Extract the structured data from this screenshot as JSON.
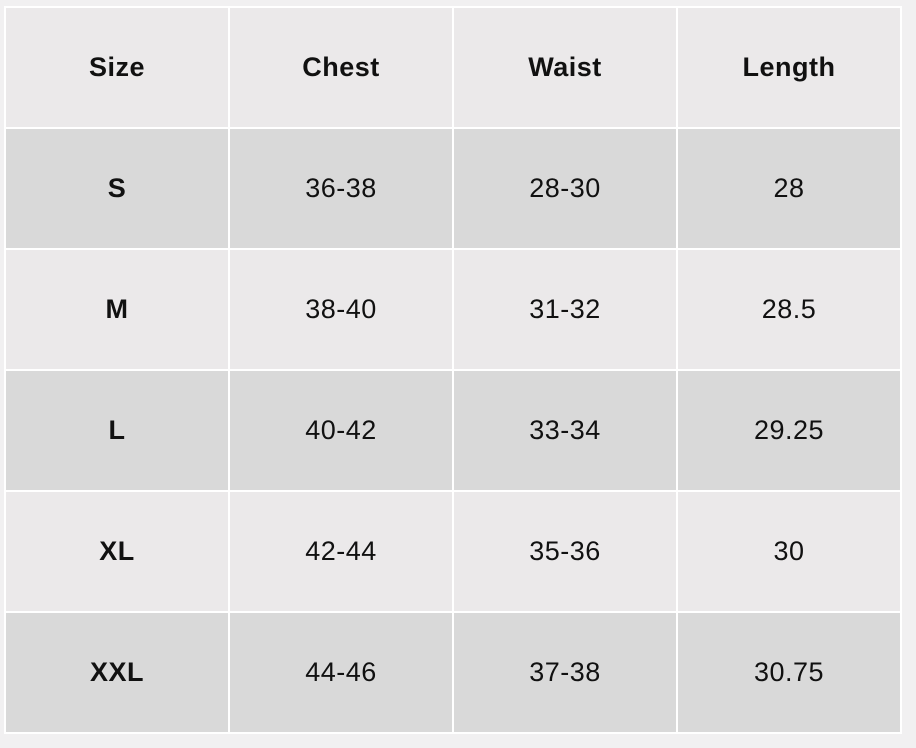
{
  "headers": [
    "Size",
    "Chest",
    "Waist",
    "Length"
  ],
  "rows": [
    [
      "S",
      "36-38",
      "28-30",
      "28"
    ],
    [
      "M",
      "38-40",
      "31-32",
      "28.5"
    ],
    [
      "L",
      "40-42",
      "33-34",
      "29.25"
    ],
    [
      "XL",
      "42-44",
      "35-36",
      "30"
    ],
    [
      "XXL",
      "44-46",
      "37-38",
      "30.75"
    ]
  ],
  "colors": {
    "header_bg": "#ebe9ea",
    "odd_row_bg": "#d9d9d9",
    "even_row_bg": "#ebe9ea",
    "border": "#ffffff"
  }
}
